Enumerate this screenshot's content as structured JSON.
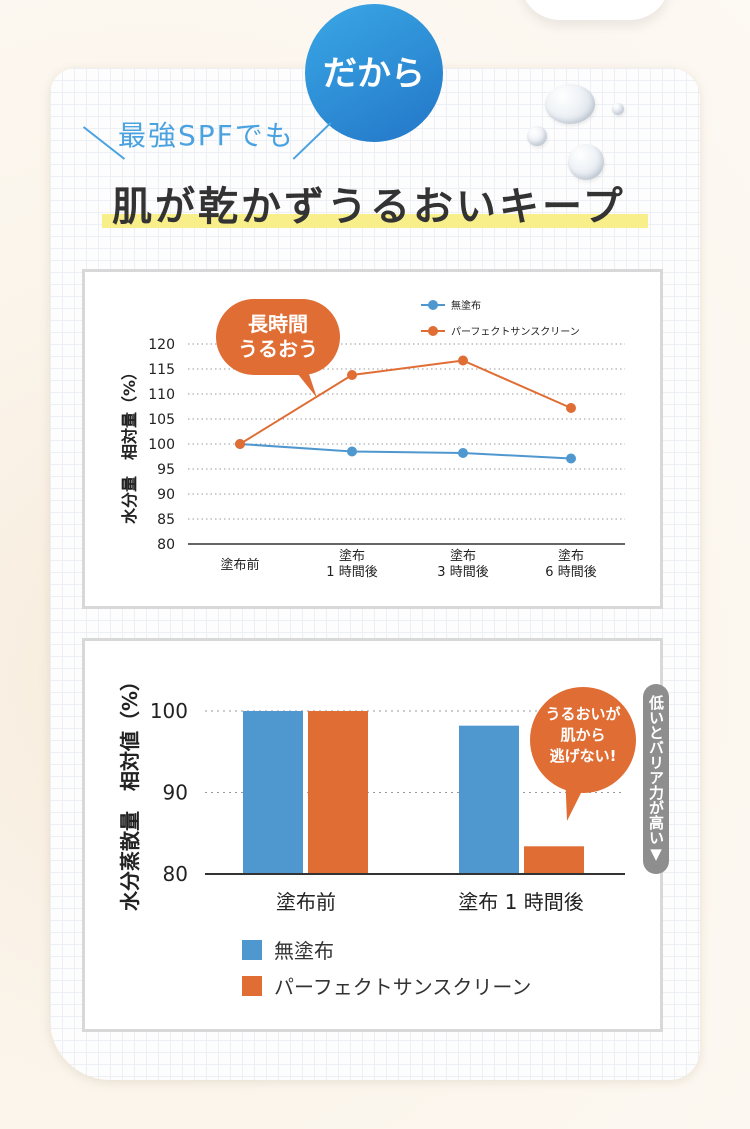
{
  "badge": "だから",
  "subtitle": "最強SPFでも",
  "headline": "肌が乾かずうるおいキープ",
  "colors": {
    "blue": "#4f97cf",
    "orange": "#e06d33",
    "badge_blue": "#2f8fd8",
    "highlight": "#f8ee8a"
  },
  "chart_data": [
    {
      "type": "line",
      "title": "",
      "ylabel": "水分量　相対量（%）",
      "categories": [
        "塗布前",
        "塗布\n1 時間後",
        "塗布\n3 時間後",
        "塗布\n6 時間後"
      ],
      "ylim": [
        80,
        120
      ],
      "yticks": [
        "80",
        "85",
        "90",
        "95",
        "100",
        "105",
        "110",
        "115",
        "120"
      ],
      "series": [
        {
          "name": "無塗布",
          "values": [
            100,
            98.5,
            98.2,
            97.1
          ]
        },
        {
          "name": "パーフェクトサンスクリーン",
          "values": [
            100,
            113.8,
            116.7,
            107.2
          ]
        }
      ],
      "callout": "長時間\nうるおう",
      "legend": "top-right"
    },
    {
      "type": "bar",
      "ylabel": "水分蒸散量　相対値（%）",
      "categories": [
        "塗布前",
        "塗布 1 時間後"
      ],
      "ylim": [
        80,
        100
      ],
      "yticks": [
        "80",
        "90",
        "100"
      ],
      "series": [
        {
          "name": "無塗布",
          "values": [
            100,
            98.2
          ]
        },
        {
          "name": "パーフェクトサンスクリーン",
          "values": [
            100,
            83.4
          ]
        }
      ],
      "callout": "うるおいが\n肌から\n逃げない!",
      "side_note": "低いとバリア力が高い▼",
      "legend": "bottom"
    }
  ]
}
